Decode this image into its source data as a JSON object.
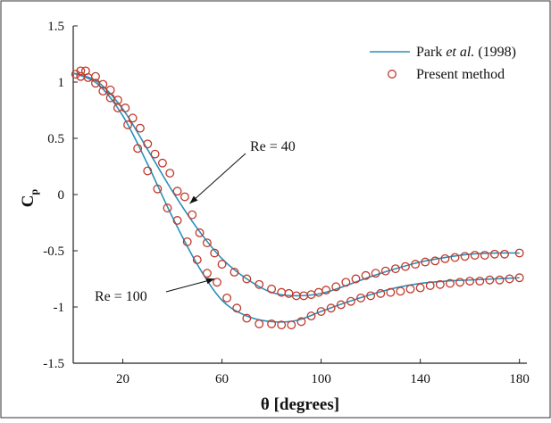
{
  "chart_data": {
    "type": "line",
    "title": "",
    "xlabel": "θ [degrees]",
    "ylabel_main": "C",
    "ylabel_sub": "p",
    "xlim": [
      0,
      183
    ],
    "ylim": [
      -1.5,
      1.5
    ],
    "x_ticks": [
      20,
      60,
      100,
      140,
      180
    ],
    "x_tick_labels": [
      "20",
      "60",
      "100",
      "140",
      "180"
    ],
    "y_ticks": [
      1.5,
      1,
      0.5,
      0,
      -0.5,
      -1,
      -1.5
    ],
    "y_tick_labels": [
      "1.5",
      "1",
      "0.5",
      "0",
      "-0.5",
      "-1",
      "-1.5"
    ],
    "grid": false,
    "legend": {
      "placement": "top-right",
      "line_label_pre": "Park ",
      "line_label_italic": "et al.",
      "line_label_post": " (1998)",
      "marker_label": "Present method"
    },
    "annotations": [
      {
        "text": "Re = 40",
        "target_x": 47,
        "target_y": -0.08
      },
      {
        "text": "Re = 100",
        "target_x": 57,
        "target_y": -0.75
      }
    ],
    "line_color": "#2a8fb8",
    "marker_color": "#c0392b",
    "series": [
      {
        "name": "Park et al. (1998), Re = 40",
        "style": "line",
        "x": [
          0,
          10,
          20,
          30,
          40,
          50,
          60,
          70,
          80,
          90,
          100,
          110,
          120,
          130,
          140,
          150,
          160,
          170,
          180
        ],
        "y": [
          1.08,
          1.0,
          0.76,
          0.4,
          0.03,
          -0.3,
          -0.57,
          -0.75,
          -0.87,
          -0.9,
          -0.88,
          -0.81,
          -0.73,
          -0.66,
          -0.6,
          -0.56,
          -0.53,
          -0.52,
          -0.52
        ]
      },
      {
        "name": "Park et al. (1998), Re = 100",
        "style": "line",
        "x": [
          0,
          10,
          20,
          30,
          40,
          50,
          60,
          70,
          80,
          90,
          100,
          110,
          120,
          130,
          140,
          150,
          160,
          170,
          180
        ],
        "y": [
          1.08,
          0.98,
          0.7,
          0.27,
          -0.2,
          -0.62,
          -0.94,
          -1.08,
          -1.13,
          -1.12,
          -1.04,
          -0.96,
          -0.89,
          -0.83,
          -0.79,
          -0.77,
          -0.76,
          -0.75,
          -0.74
        ]
      },
      {
        "name": "Present method, Re = 40",
        "style": "markers",
        "x": [
          1,
          3,
          5,
          9,
          12,
          15,
          18,
          21,
          24,
          27,
          30,
          33,
          36,
          39,
          42,
          45,
          48,
          51,
          54,
          57,
          60,
          65,
          70,
          75,
          80,
          84,
          87,
          90,
          93,
          96,
          99,
          102,
          106,
          110,
          114,
          118,
          122,
          126,
          130,
          134,
          138,
          142,
          146,
          150,
          154,
          158,
          162,
          166,
          170,
          174,
          180
        ],
        "y": [
          1.07,
          1.1,
          1.1,
          1.05,
          0.98,
          0.93,
          0.84,
          0.77,
          0.68,
          0.59,
          0.45,
          0.36,
          0.28,
          0.19,
          0.03,
          -0.02,
          -0.18,
          -0.34,
          -0.43,
          -0.52,
          -0.62,
          -0.69,
          -0.75,
          -0.8,
          -0.84,
          -0.87,
          -0.88,
          -0.9,
          -0.9,
          -0.89,
          -0.87,
          -0.85,
          -0.82,
          -0.78,
          -0.75,
          -0.72,
          -0.7,
          -0.68,
          -0.66,
          -0.64,
          -0.62,
          -0.6,
          -0.59,
          -0.57,
          -0.56,
          -0.55,
          -0.54,
          -0.54,
          -0.53,
          -0.53,
          -0.52
        ]
      },
      {
        "name": "Present method, Re = 100",
        "style": "markers",
        "x": [
          3,
          6,
          9,
          12,
          15,
          18,
          22,
          26,
          30,
          34,
          38,
          42,
          46,
          50,
          54,
          58,
          62,
          66,
          70,
          75,
          80,
          84,
          88,
          92,
          96,
          100,
          104,
          108,
          112,
          116,
          120,
          124,
          128,
          132,
          136,
          140,
          144,
          148,
          152,
          156,
          160,
          164,
          168,
          172,
          176,
          180
        ],
        "y": [
          1.05,
          1.04,
          0.99,
          0.92,
          0.86,
          0.77,
          0.62,
          0.41,
          0.21,
          0.05,
          -0.12,
          -0.23,
          -0.42,
          -0.58,
          -0.7,
          -0.78,
          -0.92,
          -1.01,
          -1.1,
          -1.15,
          -1.15,
          -1.16,
          -1.16,
          -1.13,
          -1.08,
          -1.04,
          -1.01,
          -0.98,
          -0.95,
          -0.92,
          -0.9,
          -0.88,
          -0.87,
          -0.86,
          -0.84,
          -0.83,
          -0.81,
          -0.8,
          -0.79,
          -0.78,
          -0.77,
          -0.77,
          -0.76,
          -0.76,
          -0.75,
          -0.74
        ]
      }
    ]
  }
}
